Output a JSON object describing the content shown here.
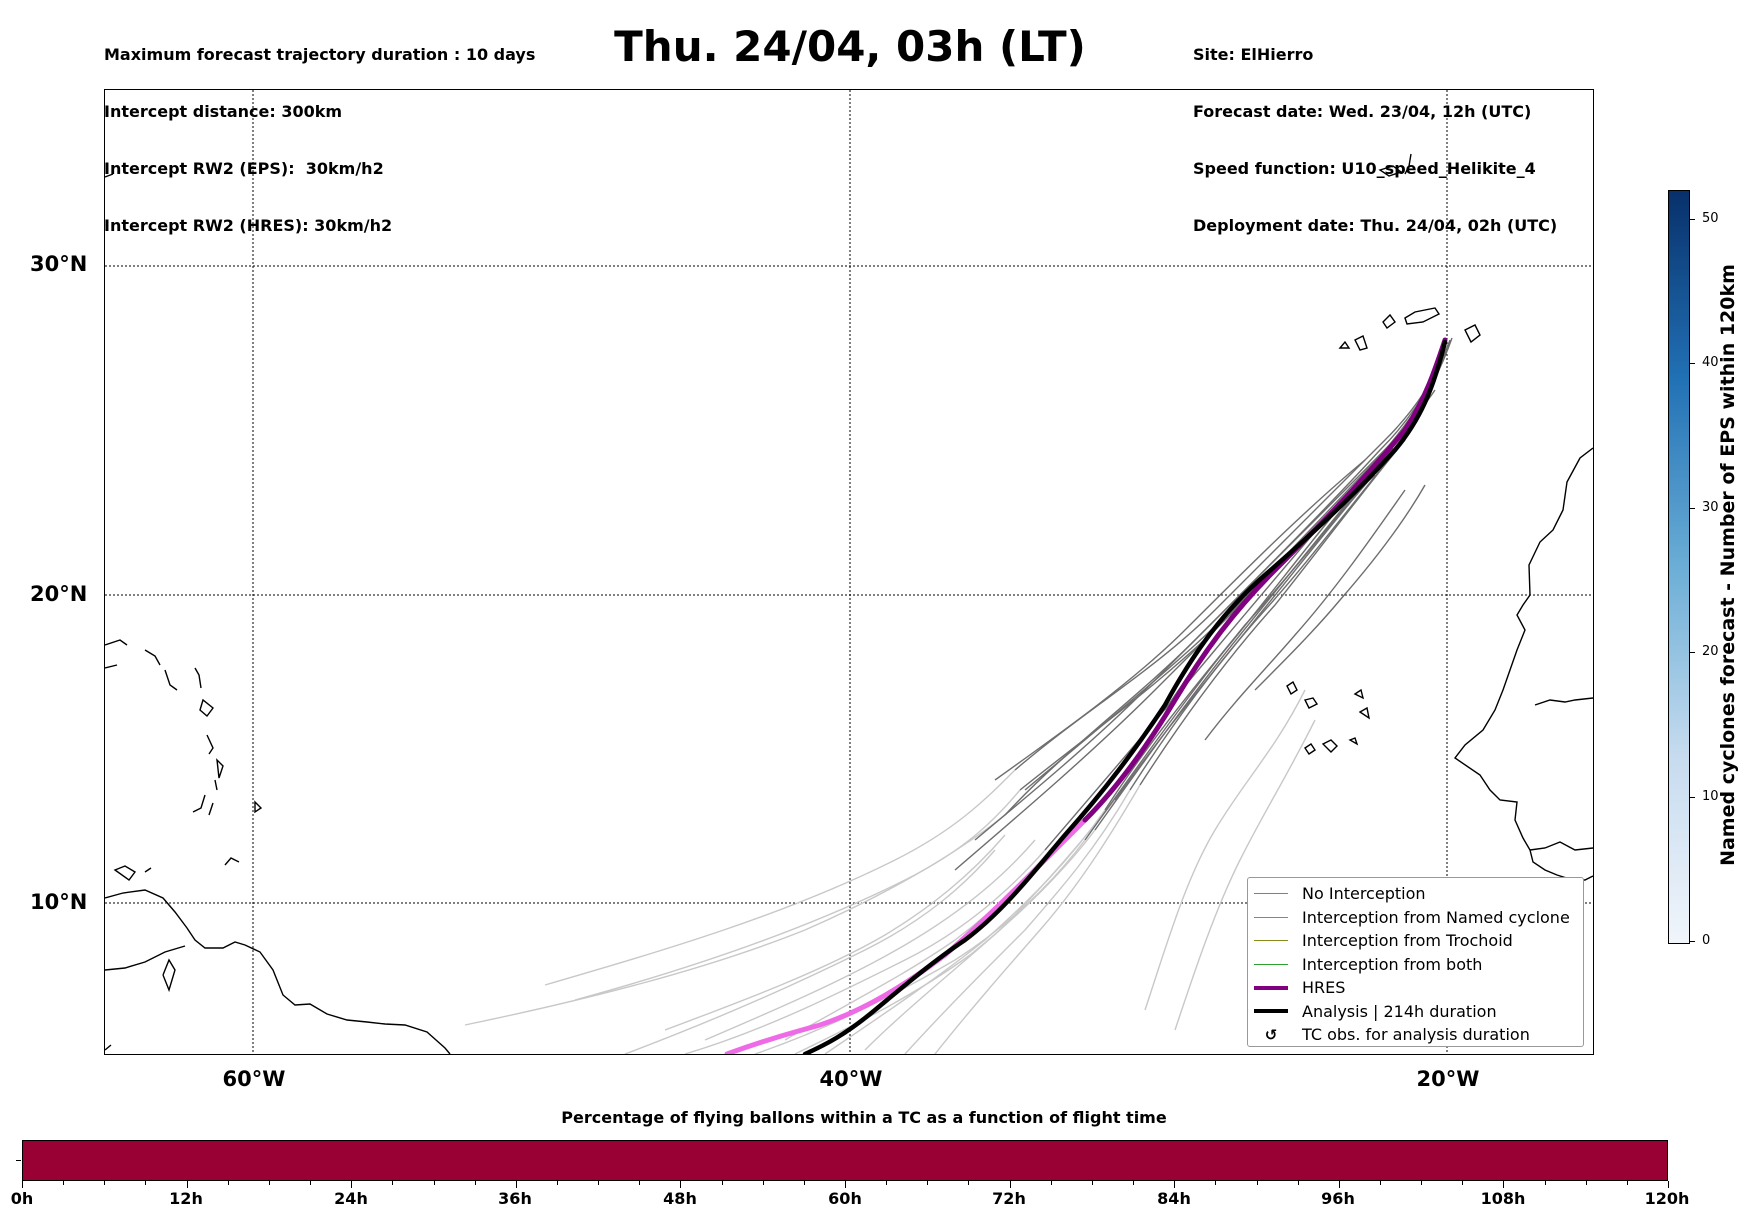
{
  "header": {
    "left": [
      "Maximum forecast trajectory duration : 10 days",
      "Intercept distance: 300km",
      "Intercept RW2 (EPS):  30km/h2",
      "Intercept RW2 (HRES): 30km/h2"
    ],
    "title": "Thu. 24/04, 03h (LT)",
    "right": [
      "Site: ElHierro",
      "Forecast date: Wed. 23/04, 12h (UTC)",
      "Speed function: U10_speed_Helikite_4",
      "Deployment date: Thu. 24/04, 02h (UTC)"
    ]
  },
  "map": {
    "lat_labels": [
      "30°N",
      "20°N",
      "10°N"
    ],
    "lon_labels": [
      "60°W",
      "40°W",
      "20°W"
    ]
  },
  "legend": {
    "items": [
      {
        "label": "No Interception",
        "color": "#808080",
        "style": "thin"
      },
      {
        "label": "Interception from Named cyclone",
        "color": "#e8603c",
        "style": "thin"
      },
      {
        "label": "Interception from Trochoid",
        "color": "#8a8a1a",
        "style": "thin"
      },
      {
        "label": "Interception from both",
        "color": "#2ca02c",
        "style": "thin"
      },
      {
        "label": "HRES",
        "color": "#800080",
        "style": "thick"
      },
      {
        "label": "Analysis | 214h duration",
        "color": "#000000",
        "style": "thick"
      },
      {
        "label": "TC obs. for analysis duration",
        "color": "#000000",
        "style": "symbol"
      }
    ]
  },
  "colorbar": {
    "label": "Named cyclones forecast - Number of EPS within 120km",
    "ticks": [
      "0",
      "10",
      "20",
      "30",
      "40",
      "50"
    ]
  },
  "timeline": {
    "title": "Percentage of flying ballons within a TC as a function of flight time",
    "labels": [
      "0h",
      "12h",
      "24h",
      "36h",
      "48h",
      "60h",
      "72h",
      "84h",
      "96h",
      "108h",
      "120h"
    ],
    "bar_color": "#990033"
  }
}
